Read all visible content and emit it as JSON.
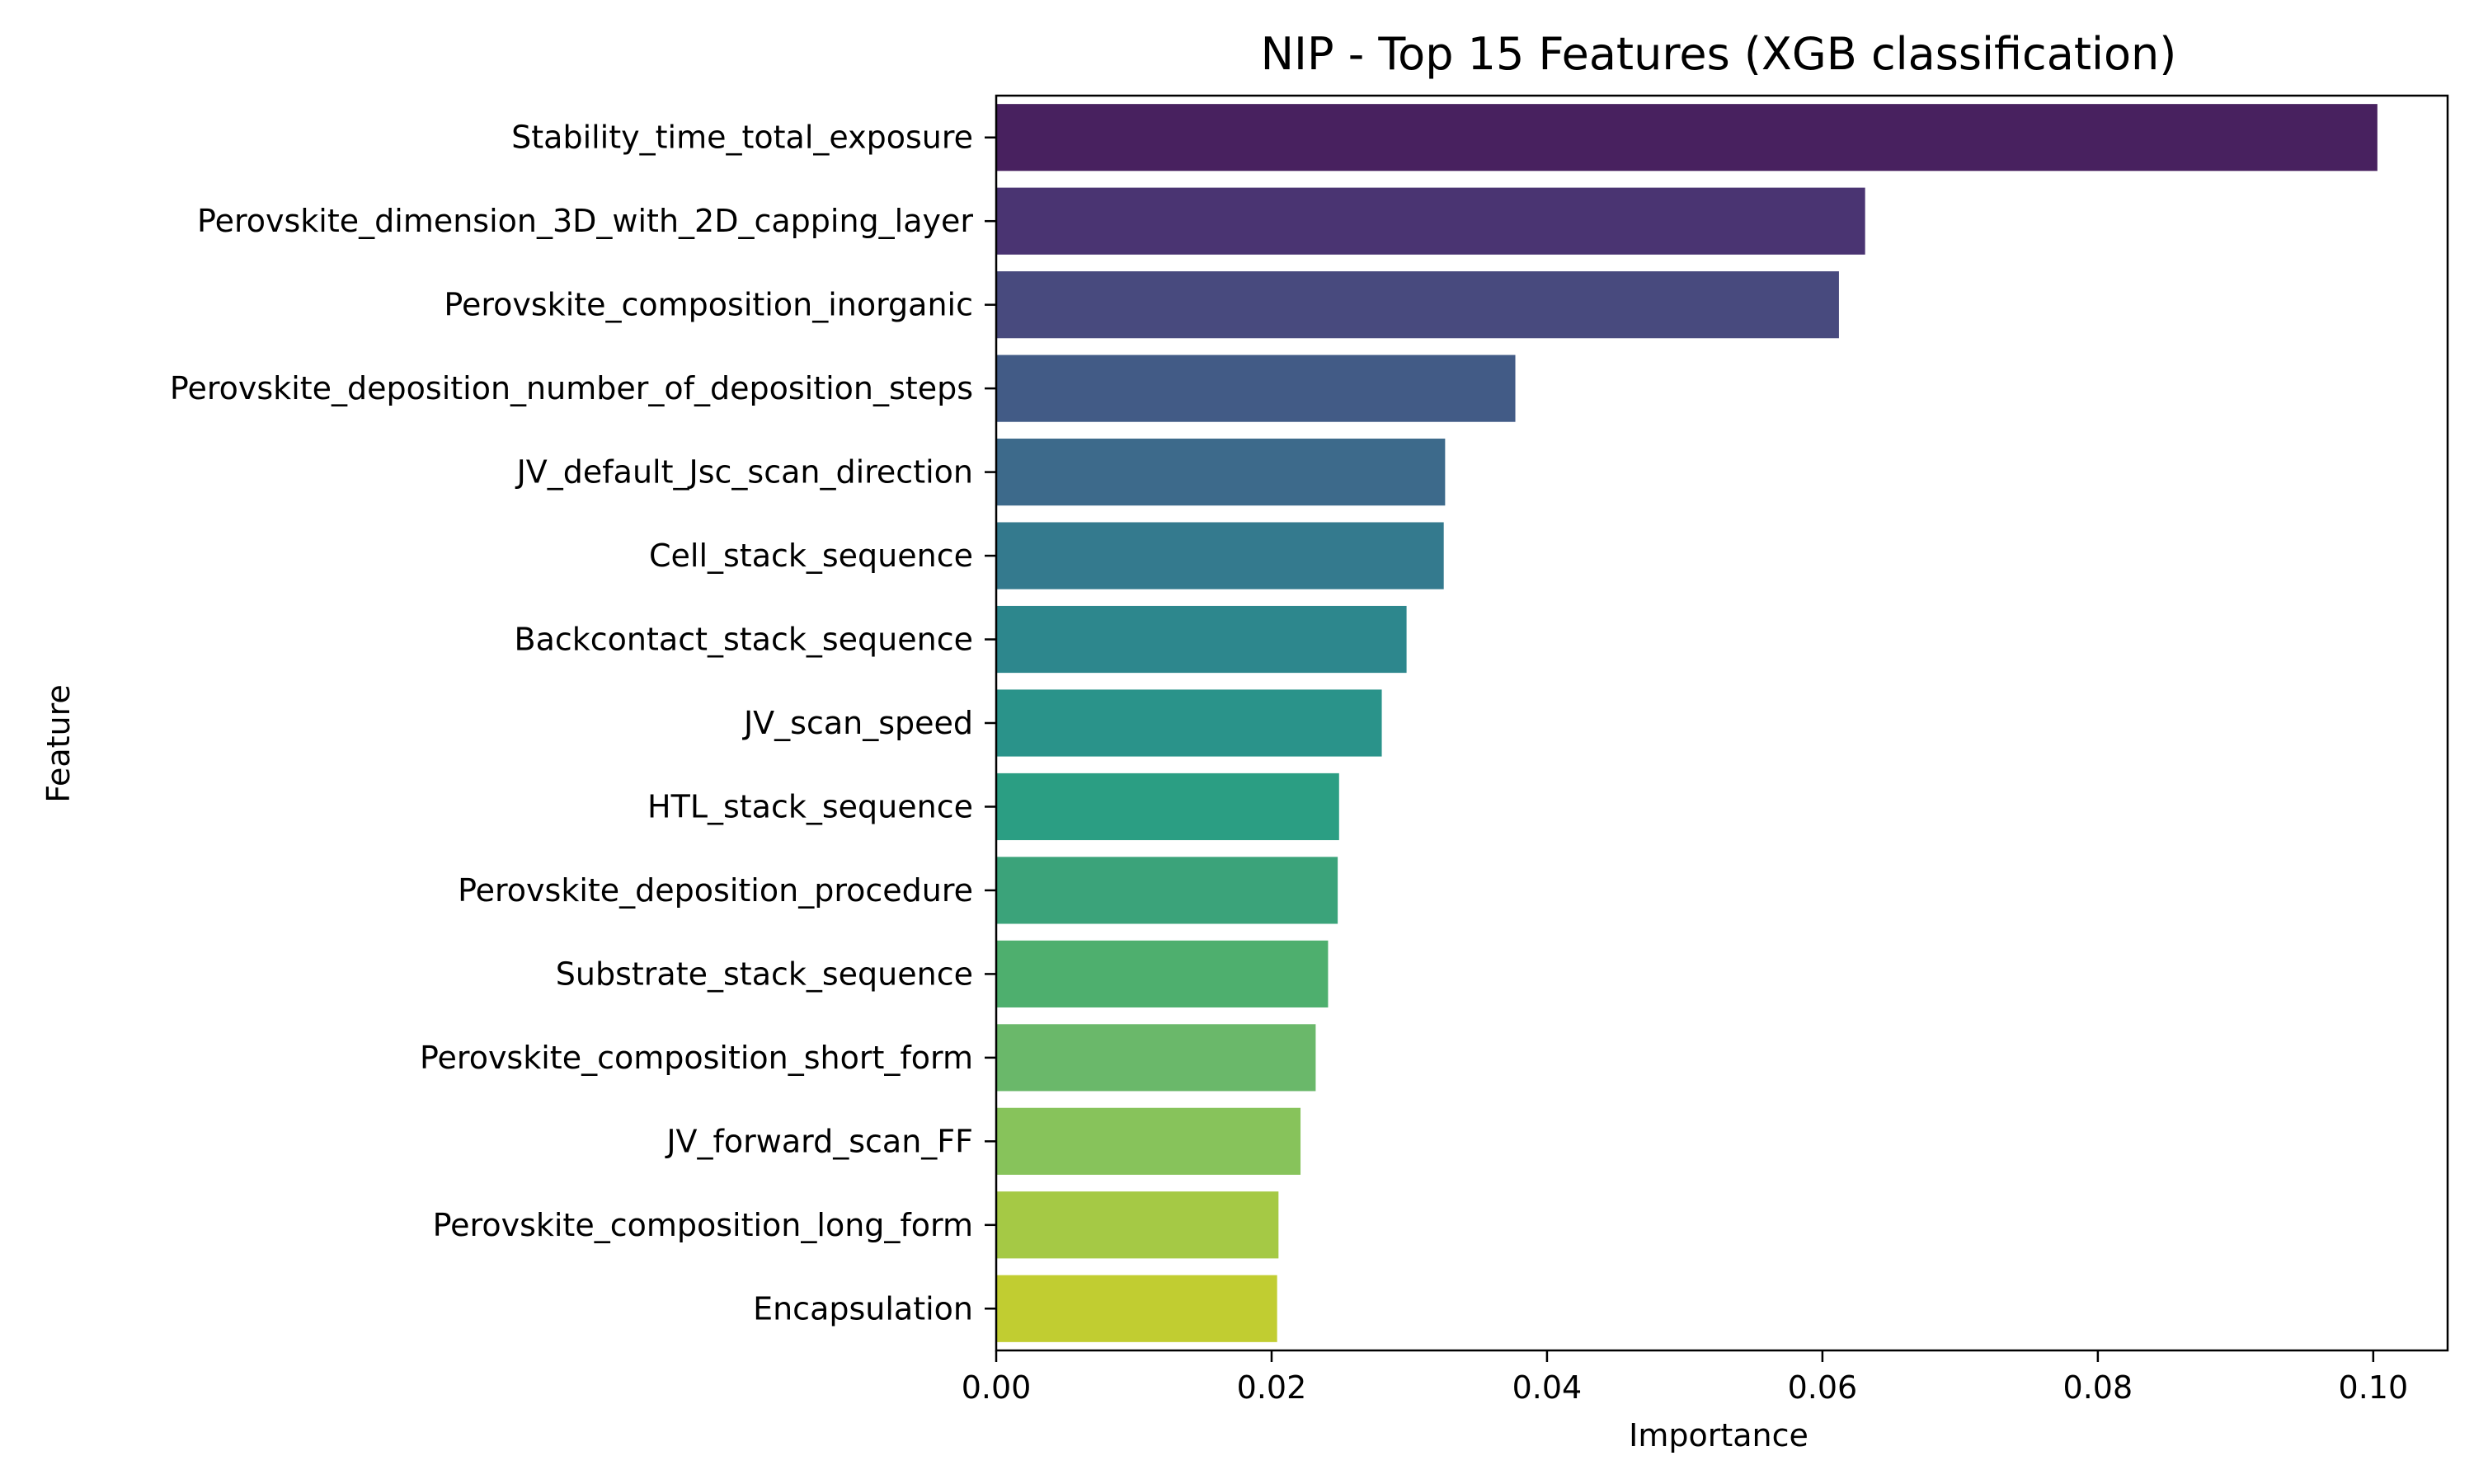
{
  "chart_data": {
    "type": "bar",
    "orientation": "horizontal",
    "title": "NIP - Top 15 Features (XGB classification)",
    "xlabel": "Importance",
    "ylabel": "Feature",
    "xlim": [
      0,
      0.1054
    ],
    "xticks": [
      0.0,
      0.02,
      0.04,
      0.06,
      0.08,
      0.1
    ],
    "xtick_labels": [
      "0.00",
      "0.02",
      "0.04",
      "0.06",
      "0.08",
      "0.10"
    ],
    "grid": false,
    "categories": [
      "Stability_time_total_exposure",
      "Perovskite_dimension_3D_with_2D_capping_layer",
      "Perovskite_composition_inorganic",
      "Perovskite_deposition_number_of_deposition_steps",
      "JV_default_Jsc_scan_direction",
      "Cell_stack_sequence",
      "Backcontact_stack_sequence",
      "JV_scan_speed",
      "HTL_stack_sequence",
      "Perovskite_deposition_procedure",
      "Substrate_stack_sequence",
      "Perovskite_composition_short_form",
      "JV_forward_scan_FF",
      "Perovskite_composition_long_form",
      "Encapsulation"
    ],
    "values": [
      0.1003,
      0.0631,
      0.0612,
      0.0377,
      0.0326,
      0.0325,
      0.0298,
      0.028,
      0.0249,
      0.0248,
      0.0241,
      0.0232,
      0.0221,
      0.0205,
      0.0204
    ],
    "colors": [
      "#48215f",
      "#4a3472",
      "#484a7e",
      "#425b86",
      "#3d6a8b",
      "#347a8e",
      "#2d878d",
      "#2a938a",
      "#2b9e83",
      "#3ba37a",
      "#4eaf6e",
      "#6ab86a",
      "#87c35b",
      "#a5c945",
      "#c1cd31"
    ]
  }
}
